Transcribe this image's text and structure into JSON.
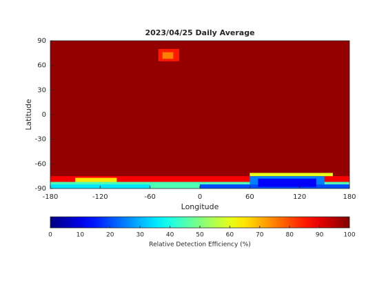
{
  "chart_data": {
    "type": "heatmap",
    "title": "2023/04/25 Daily Average",
    "x_label": "Longitude",
    "y_label": "Latitude",
    "xlim": [
      -180,
      180
    ],
    "xticks": [
      -180,
      -120,
      -60,
      0,
      60,
      120,
      180
    ],
    "ylim": [
      -90,
      90
    ],
    "yticks": [
      -90,
      -60,
      -30,
      0,
      30,
      60,
      90
    ],
    "colormap": "jet",
    "clim": [
      0,
      100
    ],
    "cticks": [
      0,
      10,
      20,
      30,
      40,
      50,
      60,
      70,
      80,
      90,
      100
    ],
    "colorbar_label": "Relative Detection Efficiency (%)",
    "patches": [
      {
        "lon": [
          -180,
          180
        ],
        "lat": [
          -90,
          90
        ],
        "value": 98
      },
      {
        "lon": [
          -50,
          -25
        ],
        "lat": [
          65,
          80
        ],
        "value": 85
      },
      {
        "lon": [
          -45,
          -32
        ],
        "lat": [
          68,
          76
        ],
        "value": 75
      },
      {
        "lon": [
          -180,
          180
        ],
        "lat": [
          -82,
          -75
        ],
        "value": 88
      },
      {
        "lon": [
          -180,
          180
        ],
        "lat": [
          -90,
          -82
        ],
        "value": 45
      },
      {
        "lon": [
          -180,
          -60
        ],
        "lat": [
          -90,
          -85
        ],
        "value": 35
      },
      {
        "lon": [
          -150,
          -100
        ],
        "lat": [
          -82,
          -77
        ],
        "value": 65
      },
      {
        "lon": [
          0,
          180
        ],
        "lat": [
          -90,
          -85
        ],
        "value": 20
      },
      {
        "lon": [
          60,
          160
        ],
        "lat": [
          -75,
          -71
        ],
        "value": 60
      },
      {
        "lon": [
          60,
          150
        ],
        "lat": [
          -85,
          -75
        ],
        "value": 25
      },
      {
        "lon": [
          70,
          140
        ],
        "lat": [
          -88,
          -78
        ],
        "value": 12
      }
    ]
  }
}
